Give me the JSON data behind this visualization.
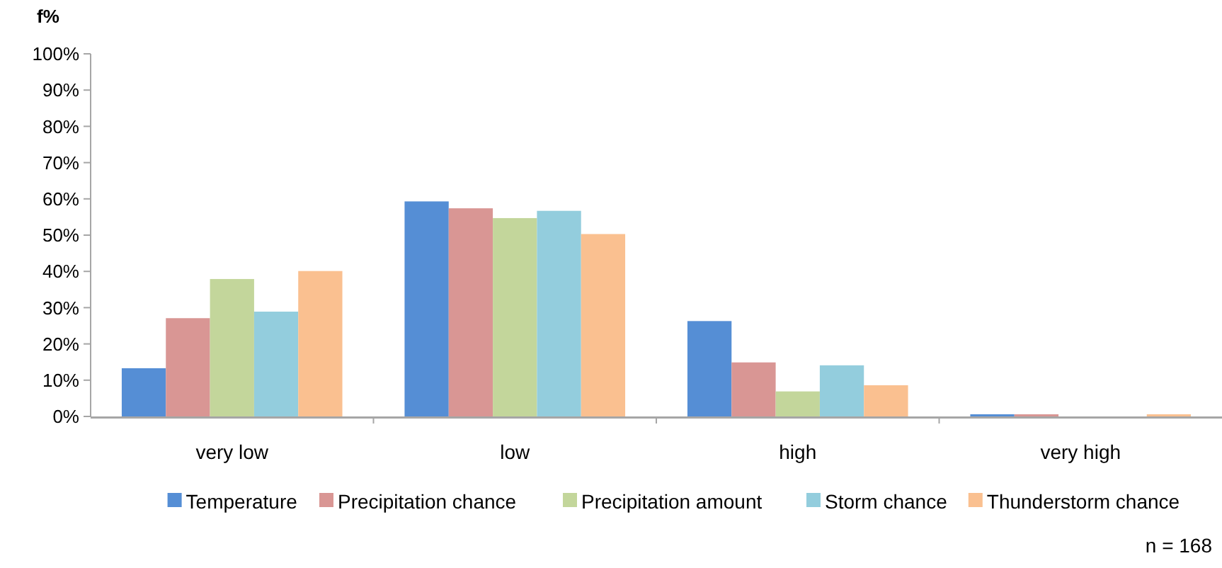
{
  "chart_data": {
    "type": "bar",
    "ylabel": "f%",
    "categories": [
      "very low",
      "low",
      "high",
      "very high"
    ],
    "series": [
      {
        "name": "Temperature",
        "color": "#558ed5",
        "values": [
          13.3,
          59.3,
          26.3,
          0.6
        ]
      },
      {
        "name": "Precipitation chance",
        "color": "#d99694",
        "values": [
          27.1,
          57.4,
          14.9,
          0.6
        ]
      },
      {
        "name": "Precipitation amount",
        "color": "#c3d69b",
        "values": [
          37.9,
          54.7,
          6.9,
          0
        ]
      },
      {
        "name": "Storm chance",
        "color": "#93cddd",
        "values": [
          28.9,
          56.7,
          14.1,
          0
        ]
      },
      {
        "name": "Thunderstorm chance",
        "color": "#fac090",
        "values": [
          40.1,
          50.3,
          8.6,
          0.6
        ]
      }
    ],
    "ylim": [
      0,
      100
    ],
    "yticks": [
      {
        "value": 0,
        "label": "0%"
      },
      {
        "value": 10,
        "label": "10%"
      },
      {
        "value": 20,
        "label": "20%"
      },
      {
        "value": 30,
        "label": "30%"
      },
      {
        "value": 40,
        "label": "40%"
      },
      {
        "value": 50,
        "label": "50%"
      },
      {
        "value": 60,
        "label": "60%"
      },
      {
        "value": 70,
        "label": "70%"
      },
      {
        "value": 80,
        "label": "80%"
      },
      {
        "value": 90,
        "label": "90%"
      },
      {
        "value": 100,
        "label": "100%"
      }
    ],
    "grid": false,
    "legend": "bottom",
    "annotations": [
      "n = 168"
    ]
  }
}
